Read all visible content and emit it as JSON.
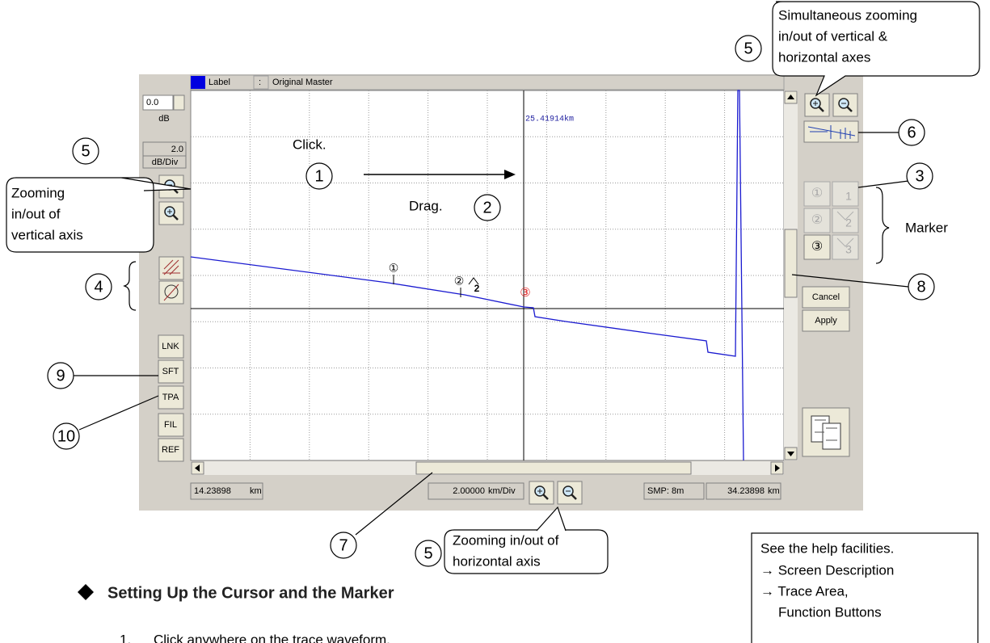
{
  "window": {
    "legend": {
      "label": "Label",
      "separator": ":",
      "name": "Original Master"
    },
    "level": "0.0",
    "level_unit": "dB",
    "scale": "2.0",
    "scale_unit": "dB/Div",
    "cursor_distance": "25.41914km",
    "trace_markers": [
      "①",
      "②",
      "2",
      "③"
    ],
    "side_buttons": [
      "LNK",
      "SFT",
      "TPA",
      "FIL",
      "REF"
    ],
    "marker_buttons": [
      [
        "①",
        "1"
      ],
      [
        "②",
        "2"
      ],
      [
        "③",
        "3"
      ]
    ],
    "actions": [
      "Cancel",
      "Apply"
    ],
    "status": {
      "start": "14.23898",
      "start_unit": "km",
      "division": "2.00000",
      "division_unit": "km/Div",
      "sampling": "SMP: 8m",
      "end": "34.23898",
      "end_unit": "km"
    }
  },
  "annotations": {
    "click": "Click.",
    "drag": "Drag.",
    "marker": "Marker",
    "callout_numbers": [
      "5",
      "6",
      "3",
      "8",
      "5",
      "4",
      "9",
      "10",
      "7",
      "5",
      "1",
      "2"
    ],
    "zoom_both": [
      "Simultaneous zooming",
      "in/out of vertical &",
      "horizontal axes"
    ],
    "zoom_vertical": [
      "Zooming",
      "in/out of",
      "vertical axis"
    ],
    "zoom_horizontal": [
      "Zooming in/out of",
      "horizontal axis"
    ]
  },
  "help": [
    "See the help facilities.",
    "→ Screen Description",
    "→ Trace Area,",
    "Function Buttons"
  ],
  "section": {
    "title": "Setting Up the Cursor and the Marker",
    "step_number": "1.",
    "step_text": "Click anywhere on the trace waveform."
  }
}
